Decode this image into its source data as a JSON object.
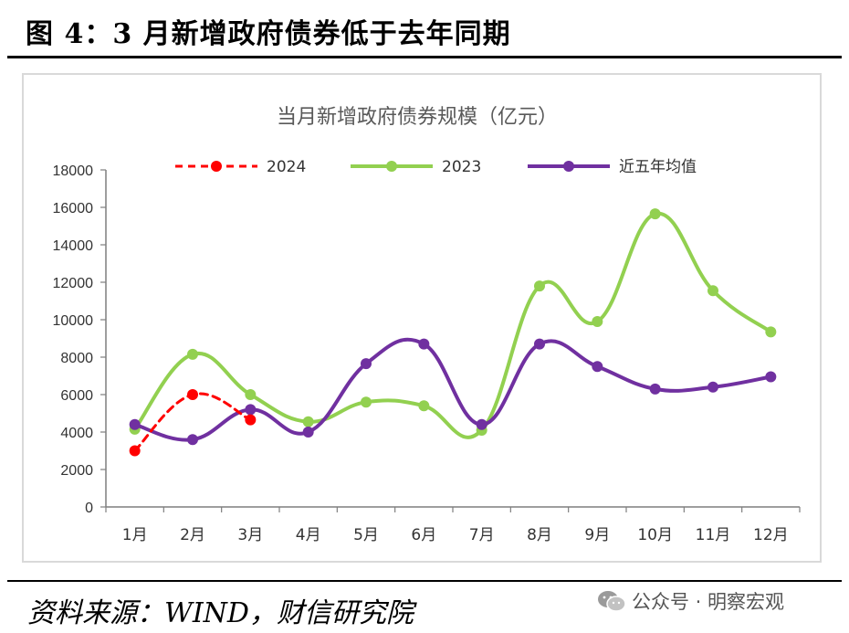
{
  "figure": {
    "title": "图 4：3 月新增政府债券低于去年同期",
    "source": "资料来源：WIND，财信研究院",
    "watermark": "公众号 · 明察宏观"
  },
  "chart_data": {
    "type": "line",
    "title": "当月新增政府债券规模（亿元）",
    "categories": [
      "1月",
      "2月",
      "3月",
      "4月",
      "5月",
      "6月",
      "7月",
      "8月",
      "9月",
      "10月",
      "11月",
      "12月"
    ],
    "yticks": [
      "0",
      "2000",
      "4000",
      "6000",
      "8000",
      "10000",
      "12000",
      "14000",
      "16000",
      "18000"
    ],
    "ylim": [
      0,
      18000
    ],
    "grid": false,
    "legend": "top",
    "series": [
      {
        "name": "2024",
        "color": "#ff0000",
        "dashed": true,
        "values": [
          3000,
          6000,
          4650,
          null,
          null,
          null,
          null,
          null,
          null,
          null,
          null,
          null
        ]
      },
      {
        "name": "2023",
        "color": "#92d050",
        "dashed": false,
        "values": [
          4150,
          8150,
          6000,
          4550,
          5600,
          5400,
          4100,
          11800,
          9900,
          15650,
          11550,
          9350
        ]
      },
      {
        "name": "近五年均值",
        "color": "#7030a0",
        "dashed": false,
        "values": [
          4400,
          3600,
          5200,
          4000,
          7650,
          8700,
          4400,
          8700,
          7500,
          6300,
          6400,
          6950
        ]
      }
    ]
  }
}
